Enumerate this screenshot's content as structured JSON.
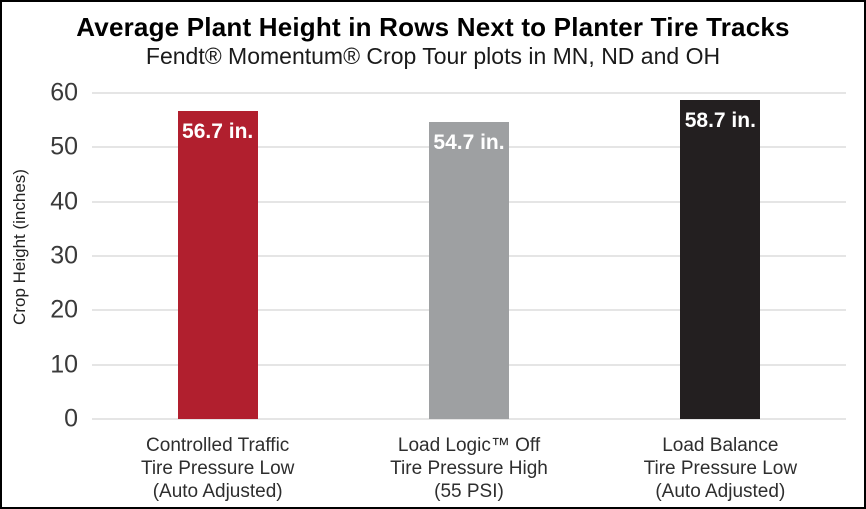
{
  "header": {
    "title": "Average Plant Height in Rows Next to Planter Tire Tracks",
    "subtitle": "Fendt® Momentum® Crop Tour plots in MN, ND and OH"
  },
  "chart_data": {
    "type": "bar",
    "title": "Average Plant Height in Rows Next to Planter Tire Tracks",
    "subtitle": "Fendt® Momentum® Crop Tour plots in MN, ND and OH",
    "xlabel": "",
    "ylabel": "Crop Height (inches)",
    "ylim": [
      0,
      63.5
    ],
    "yticks": [
      0,
      10,
      20,
      30,
      40,
      50,
      60
    ],
    "grid": true,
    "legend_position": "none",
    "categories": [
      [
        "Controlled Traffic",
        "Tire Pressure Low",
        "(Auto Adjusted)"
      ],
      [
        "Load Logic™ Off",
        "Tire Pressure High",
        "(55 PSI)"
      ],
      [
        "Load Balance",
        "Tire Pressure Low",
        "(Auto Adjusted)"
      ]
    ],
    "values": [
      56.7,
      54.7,
      58.7
    ],
    "data_labels": [
      "56.7 in.",
      "54.7 in.",
      "58.7 in."
    ],
    "bar_colors": [
      "#b11f2e",
      "#9ea0a2",
      "#231f20"
    ]
  },
  "colors": {
    "background": "#ffffff",
    "border": "#000000",
    "gridline": "#e5e5e5",
    "tick_text": "#3a3a3a",
    "label_text": "#2e2e2e",
    "bar_label_text": "#ffffff"
  }
}
